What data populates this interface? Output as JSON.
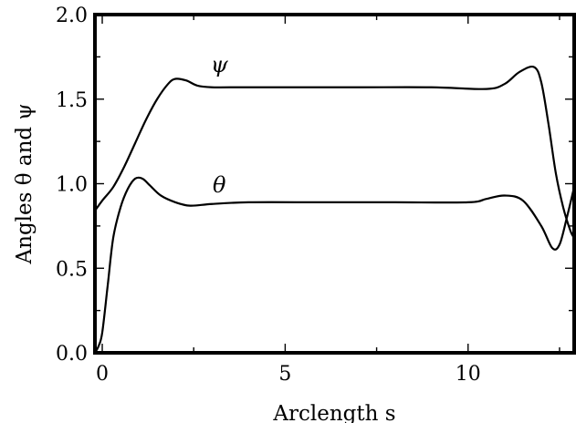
{
  "chart_data": {
    "type": "line",
    "xlabel": "Arclength s",
    "ylabel": "Angles θ and ψ",
    "xlim": [
      -0.2,
      12.9
    ],
    "ylim": [
      0.0,
      2.0
    ],
    "xticks": [
      0,
      5,
      10
    ],
    "xtick_labels": [
      "0",
      "5",
      "10"
    ],
    "xminor": [
      2.5,
      7.5,
      12.5
    ],
    "yticks": [
      0.0,
      0.5,
      1.0,
      1.5,
      2.0
    ],
    "ytick_labels": [
      "0.0",
      "0.5",
      "1.0",
      "1.5",
      "2.0"
    ],
    "grid": false,
    "series": [
      {
        "name": "ψ",
        "label_at": [
          3.2,
          1.66
        ],
        "x": [
          -0.2,
          0.0,
          0.3,
          0.6,
          0.9,
          1.2,
          1.5,
          1.8,
          2.0,
          2.3,
          2.6,
          3.0,
          3.5,
          5.0,
          7.0,
          9.0,
          10.5,
          11.0,
          11.4,
          11.8,
          12.0,
          12.2,
          12.4,
          12.6,
          12.8,
          12.9
        ],
        "y": [
          0.84,
          0.9,
          0.98,
          1.1,
          1.24,
          1.38,
          1.5,
          1.59,
          1.62,
          1.61,
          1.58,
          1.57,
          1.57,
          1.57,
          1.57,
          1.57,
          1.56,
          1.59,
          1.66,
          1.69,
          1.6,
          1.35,
          1.06,
          0.86,
          0.72,
          0.68
        ]
      },
      {
        "name": "θ",
        "label_at": [
          3.2,
          0.95
        ],
        "x": [
          -0.2,
          -0.1,
          0.0,
          0.15,
          0.3,
          0.5,
          0.7,
          0.9,
          1.1,
          1.3,
          1.6,
          2.0,
          2.4,
          3.0,
          4.0,
          6.0,
          8.0,
          10.0,
          10.5,
          11.0,
          11.5,
          12.0,
          12.3,
          12.5,
          12.7,
          12.9
        ],
        "y": [
          0.0,
          0.04,
          0.12,
          0.4,
          0.68,
          0.86,
          0.97,
          1.03,
          1.03,
          0.99,
          0.93,
          0.89,
          0.87,
          0.88,
          0.89,
          0.89,
          0.89,
          0.89,
          0.91,
          0.93,
          0.9,
          0.75,
          0.62,
          0.64,
          0.8,
          0.98
        ]
      }
    ]
  }
}
